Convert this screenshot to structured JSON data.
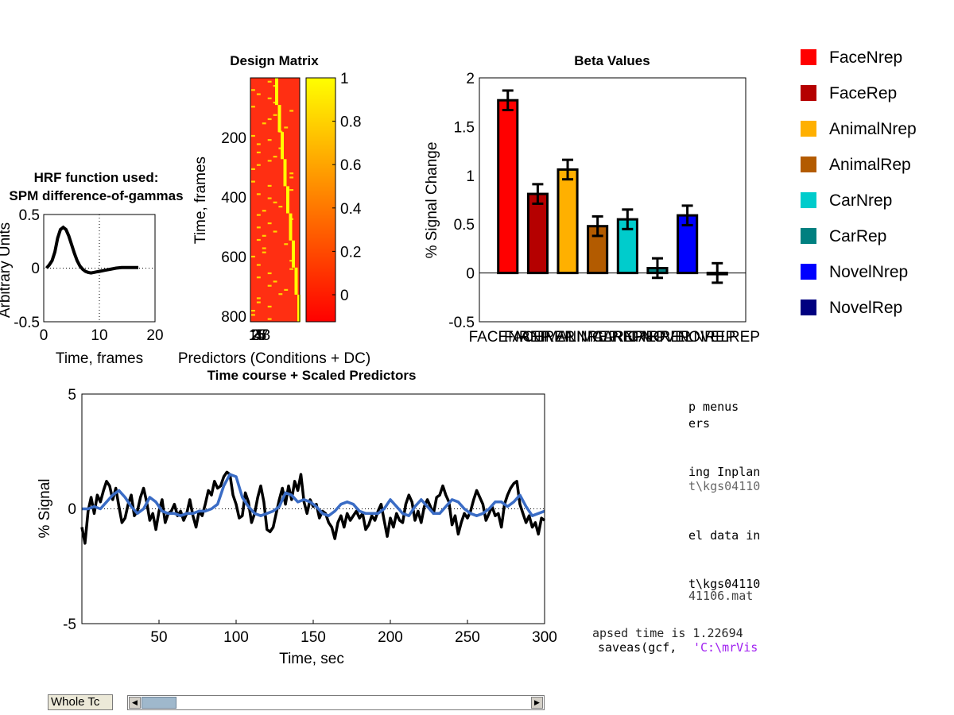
{
  "legend": {
    "items": [
      {
        "label": "FaceNrep",
        "color": "#ff0000"
      },
      {
        "label": "FaceRep",
        "color": "#b50000"
      },
      {
        "label": "AnimalNrep",
        "color": "#ffb000"
      },
      {
        "label": "AnimalRep",
        "color": "#b35b00"
      },
      {
        "label": "CarNrep",
        "color": "#00cccc"
      },
      {
        "label": "CarRep",
        "color": "#008080"
      },
      {
        "label": "NovelNrep",
        "color": "#0000ff"
      },
      {
        "label": "NovelRep",
        "color": "#000080"
      }
    ]
  },
  "console_text": {
    "lines": [
      "p menus",
      "ers",
      "ing Inplan",
      "t\\kgs04110",
      "el data in",
      "t\\kgs04110",
      "41106.mat",
      "apsed time is 1.22694",
      " saveas(gcf, ",
      "'C:\\mrVis"
    ]
  },
  "controls": {
    "whole_tc_button": "Whole Tc"
  },
  "chart_data": [
    {
      "id": "hrf",
      "type": "line",
      "title": "HRF function used:",
      "subtitle": "SPM difference-of-gammas",
      "xlabel": "Time, frames",
      "ylabel": "Arbitrary Units",
      "xlim": [
        0,
        20
      ],
      "ylim": [
        -0.5,
        0.5
      ],
      "xticks": [
        "0",
        "10",
        "20"
      ],
      "yticks": [
        "-0.5",
        "0",
        "0.5"
      ],
      "grid": "x=10 and y=0 dotted",
      "x": [
        0.5,
        1,
        1.5,
        2,
        2.5,
        3,
        3.5,
        4,
        4.5,
        5,
        5.5,
        6,
        6.5,
        7,
        7.5,
        8,
        8.5,
        9,
        9.5,
        10,
        11,
        12,
        13,
        14,
        15,
        16,
        17
      ],
      "y": [
        0.0,
        0.03,
        0.07,
        0.15,
        0.28,
        0.36,
        0.38,
        0.36,
        0.3,
        0.22,
        0.14,
        0.07,
        0.02,
        -0.01,
        -0.03,
        -0.04,
        -0.045,
        -0.04,
        -0.035,
        -0.03,
        -0.02,
        -0.01,
        0.0,
        0.005,
        0.005,
        0.005,
        0.005
      ]
    },
    {
      "id": "design-matrix",
      "type": "heatmap",
      "title": "Design Matrix",
      "xlabel": "Predictors (Conditions + DC)",
      "ylabel": "Time, frames",
      "yticks": [
        "200",
        "400",
        "600",
        "800"
      ],
      "xticks": [
        "1",
        "2",
        "3",
        "4",
        "5",
        "6",
        "7",
        "8"
      ],
      "n_rows": 820,
      "n_columns": 9,
      "colorbar": {
        "range": [
          0,
          1
        ],
        "ticks": [
          "0",
          "0.2",
          "0.4",
          "0.6",
          "0.8",
          "1"
        ]
      },
      "colormap": "autumn"
    },
    {
      "id": "beta",
      "type": "bar",
      "title": "Beta Values",
      "ylabel": "% Signal Change",
      "ylim": [
        -0.5,
        2
      ],
      "yticks": [
        "-0.5",
        "0",
        "0.5",
        "1",
        "1.5",
        "2"
      ],
      "categories": [
        "FACENREP",
        "FACEREP",
        "ANIMALNREP",
        "ANIMALREP",
        "CARNREP",
        "CARREP",
        "NOVELNREP",
        "NOVELREP"
      ],
      "values": [
        1.77,
        0.81,
        1.06,
        0.48,
        0.55,
        0.05,
        0.59,
        0.0
      ],
      "errors": [
        0.1,
        0.1,
        0.1,
        0.1,
        0.1,
        0.1,
        0.1,
        0.1
      ],
      "colors": [
        "#ff0000",
        "#b50000",
        "#ffb000",
        "#b35b00",
        "#00cccc",
        "#008080",
        "#0000ff",
        "#000080"
      ]
    },
    {
      "id": "timecourse",
      "type": "line",
      "title": "Time course + Scaled Predictors",
      "xlabel": "Time, sec",
      "ylabel": "% Signal",
      "xlim": [
        0,
        300
      ],
      "ylim": [
        -5,
        5
      ],
      "xticks": [
        "50",
        "100",
        "150",
        "200",
        "250",
        "300"
      ],
      "yticks": [
        "-5",
        "0",
        "5"
      ],
      "grid": "y=0 dotted",
      "series": [
        {
          "color": "#000000",
          "x": [
            0,
            2,
            4,
            6,
            8,
            10,
            12,
            14,
            16,
            18,
            20,
            22,
            24,
            26,
            28,
            30,
            32,
            34,
            36,
            38,
            40,
            42,
            44,
            46,
            48,
            50,
            52,
            54,
            56,
            58,
            60,
            62,
            64,
            66,
            68,
            70,
            72,
            74,
            76,
            78,
            80,
            82,
            84,
            86,
            88,
            90,
            92,
            94,
            96,
            98,
            100,
            102,
            104,
            106,
            108,
            110,
            112,
            114,
            116,
            118,
            120,
            122,
            124,
            126,
            128,
            130,
            132,
            134,
            136,
            138,
            140,
            142,
            144,
            146,
            148,
            150,
            152,
            154,
            156,
            158,
            160,
            162,
            164,
            166,
            168,
            170,
            172,
            174,
            176,
            178,
            180,
            182,
            184,
            186,
            188,
            190,
            192,
            194,
            196,
            198,
            200,
            202,
            204,
            206,
            208,
            210,
            212,
            214,
            216,
            218,
            220,
            222,
            224,
            226,
            228,
            230,
            232,
            234,
            236,
            238,
            240,
            242,
            244,
            246,
            248,
            250,
            252,
            254,
            256,
            258,
            260,
            262,
            264,
            266,
            268,
            270,
            272,
            274,
            276,
            278,
            280,
            282,
            284,
            286,
            288,
            290,
            292,
            294,
            296,
            298,
            300
          ],
          "y": [
            -0.8,
            -1.5,
            -0.1,
            0.5,
            -0.2,
            0.6,
            0.3,
            0.8,
            1.2,
            1.0,
            0.4,
            0.9,
            0.1,
            -0.6,
            -0.4,
            0.2,
            0.6,
            -0.3,
            -0.1,
            0.5,
            0.9,
            0.3,
            -0.5,
            -0.2,
            -0.9,
            -0.1,
            0.4,
            -0.6,
            -0.2,
            -0.1,
            0.2,
            -0.3,
            -0.1,
            -0.5,
            -0.2,
            0.4,
            -0.3,
            -0.8,
            -0.1,
            -0.3,
            0.2,
            0.8,
            0.6,
            1.2,
            0.9,
            1.0,
            1.4,
            1.6,
            1.5,
            0.6,
            0.2,
            -0.4,
            -0.3,
            0.7,
            0.3,
            -0.6,
            -0.2,
            0.5,
            1.0,
            0.3,
            -0.9,
            -1.0,
            -0.8,
            -0.2,
            0.4,
            0.9,
            0.2,
            1.0,
            0.4,
            1.2,
            0.8,
            1.5,
            0.3,
            -0.2,
            0.4,
            0.1,
            0.2,
            -0.4,
            -0.1,
            -0.2,
            -0.6,
            -0.8,
            -1.3,
            -0.6,
            -0.3,
            -0.8,
            -0.2,
            -0.5,
            -0.3,
            -0.1,
            -0.4,
            -0.2,
            -0.9,
            -0.7,
            -0.3,
            -0.5,
            -0.1,
            0.2,
            -0.5,
            -1.2,
            -0.4,
            -0.8,
            -0.2,
            -0.5,
            -0.6,
            0.2,
            0.6,
            0.3,
            -0.5,
            -0.1,
            -0.6,
            0.1,
            0.4,
            0.1,
            -0.2,
            0.5,
            0.6,
            1.0,
            0.6,
            0.3,
            -0.7,
            -0.3,
            -1.1,
            -0.6,
            -0.2,
            -0.4,
            -0.1,
            0.4,
            0.8,
            0.5,
            0.2,
            -0.5,
            -0.2,
            0.1,
            -0.3,
            -0.2,
            -0.8,
            0.2,
            0.6,
            0.9,
            1.1,
            1.2,
            0.2,
            -0.2,
            -0.6,
            -0.3,
            -0.8,
            -0.6,
            -1.1,
            -0.4,
            -0.5
          ]
        },
        {
          "color": "#3a6cc5",
          "x": [
            0,
            4,
            8,
            12,
            16,
            20,
            24,
            28,
            32,
            36,
            40,
            44,
            48,
            52,
            56,
            60,
            64,
            68,
            72,
            76,
            80,
            84,
            88,
            92,
            96,
            100,
            104,
            108,
            112,
            116,
            120,
            124,
            128,
            132,
            136,
            140,
            144,
            148,
            152,
            156,
            160,
            164,
            168,
            172,
            176,
            180,
            184,
            188,
            192,
            196,
            200,
            204,
            208,
            212,
            216,
            220,
            224,
            228,
            232,
            236,
            240,
            244,
            248,
            252,
            256,
            260,
            264,
            268,
            272,
            276,
            280,
            284,
            288,
            292,
            296,
            300
          ],
          "y": [
            0.0,
            0.0,
            0.1,
            0.0,
            0.3,
            0.6,
            0.8,
            0.5,
            0.1,
            -0.2,
            0.0,
            0.5,
            0.3,
            -0.1,
            -0.2,
            -0.2,
            -0.3,
            -0.2,
            -0.2,
            -0.1,
            -0.1,
            0.0,
            0.2,
            1.0,
            1.5,
            1.4,
            0.5,
            0.1,
            -0.2,
            -0.3,
            -0.2,
            -0.1,
            0.1,
            0.7,
            0.6,
            0.3,
            0.4,
            0.3,
            0.1,
            -0.2,
            -0.3,
            -0.1,
            0.2,
            0.3,
            0.2,
            -0.1,
            -0.2,
            -0.2,
            -0.2,
            0.0,
            0.4,
            0.1,
            -0.2,
            -0.3,
            0.1,
            0.4,
            0.1,
            -0.2,
            -0.2,
            0.1,
            0.4,
            0.3,
            0.0,
            -0.2,
            -0.3,
            -0.2,
            0.0,
            0.3,
            0.3,
            0.1,
            0.3,
            0.6,
            0.1,
            -0.3,
            -0.2,
            -0.1
          ]
        }
      ]
    }
  ]
}
